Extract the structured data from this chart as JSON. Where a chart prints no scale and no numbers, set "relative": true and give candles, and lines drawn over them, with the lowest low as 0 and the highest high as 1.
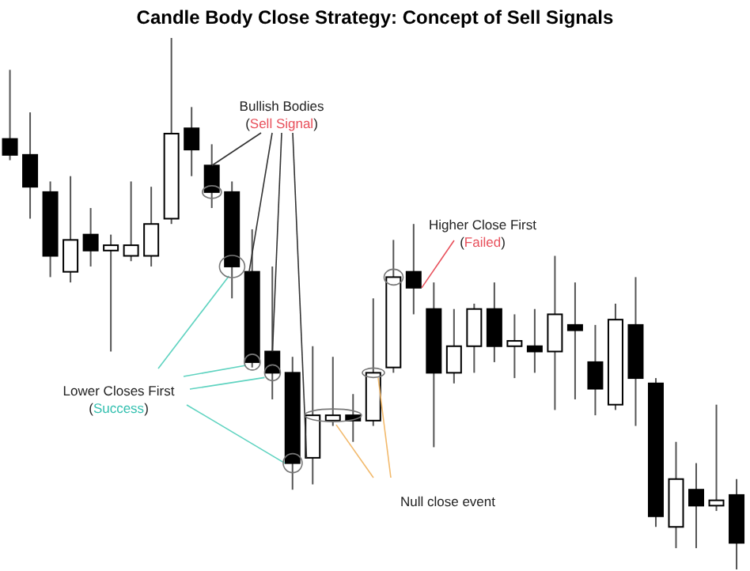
{
  "chart_data": {
    "type": "candlestick",
    "title": "Candle Body Close Strategy: Concept of Sell Signals",
    "relative": true,
    "categories": [
      null,
      null,
      null,
      null,
      null,
      null,
      null,
      null,
      null,
      null,
      null,
      null,
      null,
      null,
      null,
      null,
      null,
      null,
      null,
      null,
      null,
      null,
      null,
      null,
      null,
      null,
      null,
      null,
      null,
      null,
      null,
      null,
      null,
      null,
      null,
      null,
      null
    ],
    "ohlc": [
      [
        0.81,
        0.94,
        0.77,
        0.78
      ],
      [
        0.78,
        0.86,
        0.66,
        0.72
      ],
      [
        0.71,
        0.73,
        0.55,
        0.59
      ],
      [
        0.56,
        0.74,
        0.54,
        0.62
      ],
      [
        0.63,
        0.68,
        0.57,
        0.6
      ],
      [
        0.6,
        0.63,
        0.41,
        0.61
      ],
      [
        0.59,
        0.73,
        0.58,
        0.61
      ],
      [
        0.59,
        0.72,
        0.57,
        0.65
      ],
      [
        0.66,
        1,
        0.65,
        0.82
      ],
      [
        0.83,
        0.87,
        0.74,
        0.79
      ],
      [
        0.76,
        0.8,
        0.68,
        0.71
      ],
      [
        0.71,
        0.73,
        0.51,
        0.57
      ],
      [
        0.56,
        0.64,
        0.38,
        0.39
      ],
      [
        0.41,
        0.57,
        0.32,
        0.37
      ],
      [
        0.37,
        0.4,
        0.15,
        0.2
      ],
      [
        0.21,
        0.42,
        0.16,
        0.29
      ],
      [
        0.28,
        0.4,
        0.27,
        0.29
      ],
      [
        0.29,
        0.33,
        0.24,
        0.28
      ],
      [
        0.28,
        0.51,
        0.27,
        0.37
      ],
      [
        0.38,
        0.62,
        0.37,
        0.55
      ],
      [
        0.56,
        0.65,
        0.48,
        0.53
      ],
      [
        0.49,
        0.54,
        0.23,
        0.37
      ],
      [
        0.37,
        0.49,
        0.35,
        0.42
      ],
      [
        0.42,
        0.5,
        0.37,
        0.49
      ],
      [
        0.49,
        0.54,
        0.39,
        0.42
      ],
      [
        0.42,
        0.48,
        0.36,
        0.43
      ],
      [
        0.42,
        0.49,
        0.37,
        0.41
      ],
      [
        0.41,
        0.59,
        0.3,
        0.48
      ],
      [
        0.46,
        0.54,
        0.32,
        0.45
      ],
      [
        0.39,
        0.46,
        0.29,
        0.34
      ],
      [
        0.31,
        0.5,
        0.3,
        0.47
      ],
      [
        0.46,
        0.55,
        0.27,
        0.36
      ],
      [
        0.35,
        0.36,
        0.08,
        0.1
      ],
      [
        0.08,
        0.24,
        0.04,
        0.17
      ],
      [
        0.15,
        0.2,
        0.04,
        0.12
      ],
      [
        0.12,
        0.31,
        0.11,
        0.13
      ],
      [
        0.14,
        0.17,
        0,
        0.05
      ]
    ],
    "annotations": [
      "Bullish Bodies",
      "(Sell Signal)",
      "Higher Close First",
      "(Failed)",
      "Lower Closes First",
      "(Success)",
      "Null close event"
    ]
  }
}
